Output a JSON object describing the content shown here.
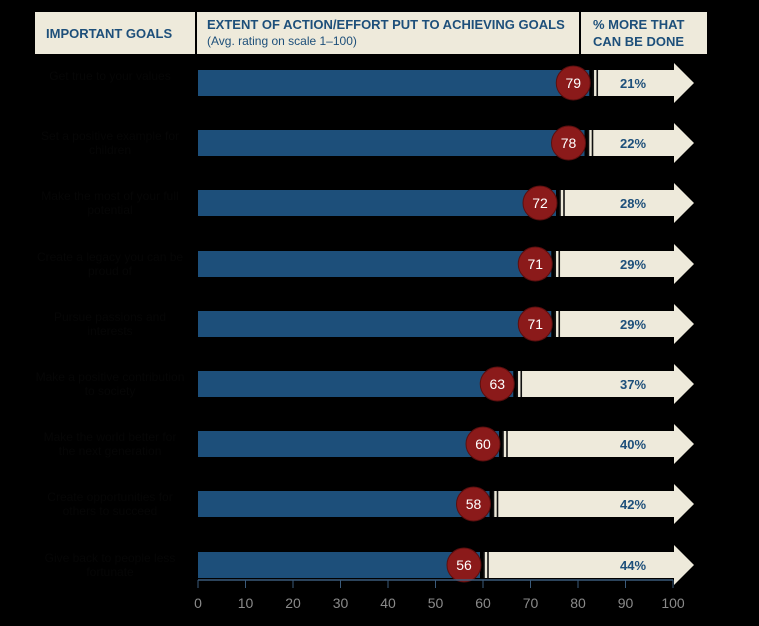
{
  "header": {
    "goals_title": "IMPORTANT GOALS",
    "extent_title": "EXTENT OF ACTION/EFFORT PUT TO ACHIEVING GOALS",
    "extent_subtitle": "(Avg. rating on scale 1–100)",
    "more_title_line1": "% MORE THAT",
    "more_title_line2": "CAN BE DONE"
  },
  "colors": {
    "bar": "#1d4f7a",
    "badge": "#8b1a1a",
    "arrow": "#eeeadb",
    "header_bg": "#eeeadb",
    "header_text": "#1d4f7a",
    "axis_text": "#8a8a8a"
  },
  "chart_data": {
    "type": "bar",
    "orientation": "horizontal",
    "categories": [
      "Get true to your values",
      "Set a positive example for children",
      "Make the most of your full potential",
      "Create a legacy you can be proud of",
      "Pursue passions and interests",
      "Make a positive contribution to society",
      "Make the world better for the next generation",
      "Create opportunities for others to succeed",
      "Give back to people less fortunate"
    ],
    "values": [
      79,
      78,
      72,
      71,
      71,
      63,
      60,
      58,
      56
    ],
    "more_labels": [
      "21%",
      "22%",
      "28%",
      "29%",
      "29%",
      "37%",
      "40%",
      "42%",
      "44%"
    ],
    "xlim": [
      0,
      100
    ],
    "xticks": [
      "0",
      "10",
      "20",
      "30",
      "40",
      "50",
      "60",
      "70",
      "80",
      "90",
      "100"
    ],
    "grid": false
  }
}
